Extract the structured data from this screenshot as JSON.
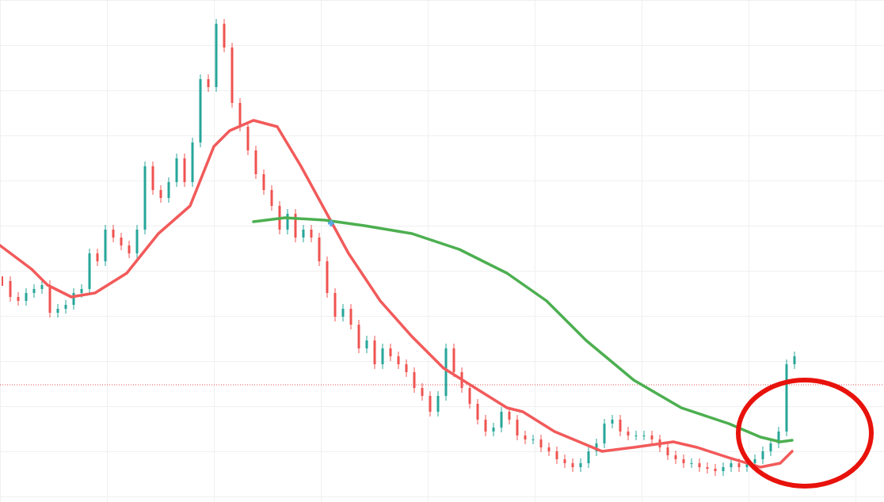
{
  "chart_data": {
    "type": "candlestick",
    "xlim": [
      0,
      111.6
    ],
    "ylim": [
      0,
      63.4
    ],
    "candles": {
      "colors": {
        "up": "#26a69a",
        "down": "#ef5350"
      },
      "values": [
        27.9,
        25.9,
        25.4,
        26.4,
        26.9,
        27.4,
        23.9,
        24.4,
        24.9,
        26.4,
        26.9,
        31.4,
        30.4,
        34.4,
        33.4,
        32.4,
        31.4,
        34.4,
        42.4,
        39.4,
        38.4,
        40.4,
        43.4,
        40.4,
        45.4,
        53.4,
        52.4,
        60.4,
        57.4,
        50.4,
        47.4,
        44.4,
        41.4,
        39.4,
        37.4,
        34.4,
        36.4,
        33.4,
        34.4,
        33.4,
        30.4,
        26.4,
        23.4,
        24.4,
        22.4,
        19.4,
        20.4,
        17.4,
        19.4,
        18.4,
        17.4,
        16.4,
        14.4,
        13.4,
        11.4,
        13.4,
        19.4,
        16.4,
        14.4,
        12.4,
        10.4,
        8.9,
        9.4,
        11.4,
        10.4,
        8.4,
        7.9,
        7.9,
        6.9,
        6.4,
        5.4,
        4.9,
        4.4,
        4.9,
        6.4,
        7.4,
        9.9,
        10.4,
        8.9,
        8.4,
        8.4,
        8.4,
        7.9,
        6.9,
        5.9,
        5.4,
        4.9,
        4.9,
        4.4,
        4.2,
        3.9,
        4.4,
        4.9,
        4.4,
        4.9,
        5.4,
        6.4,
        7.4,
        8.9,
        17.4,
        18.4
      ]
    },
    "lines": [
      {
        "color": "#f25a5a",
        "x": [
          0,
          4,
          6,
          9,
          12,
          16,
          20,
          24,
          27,
          29,
          32,
          35,
          38,
          41,
          44,
          48,
          52,
          56,
          60,
          64,
          66,
          70,
          76,
          80,
          85,
          88,
          92,
          96,
          98.5,
          100
        ],
        "values": [
          32.4,
          29.4,
          27.4,
          25.9,
          26.4,
          28.9,
          33.9,
          37.4,
          44.9,
          46.9,
          48.2,
          47.4,
          42.4,
          36.9,
          31.4,
          25.4,
          20.9,
          16.9,
          14.4,
          11.9,
          11.4,
          8.9,
          6.4,
          6.9,
          7.6,
          6.9,
          5.6,
          4.4,
          4.9,
          6.4
        ]
      },
      {
        "color": "#4caf50",
        "x": [
          32,
          36,
          41,
          46,
          52,
          58,
          64,
          69,
          74,
          80,
          86,
          92,
          96,
          98.5,
          100
        ],
        "values": [
          35.4,
          35.9,
          35.6,
          34.9,
          33.9,
          31.9,
          28.9,
          25.4,
          20.4,
          15.4,
          11.9,
          9.9,
          8.2,
          7.6,
          7.8
        ]
      }
    ],
    "price_line": {
      "value": 14.8,
      "color": "#e05050"
    }
  }
}
